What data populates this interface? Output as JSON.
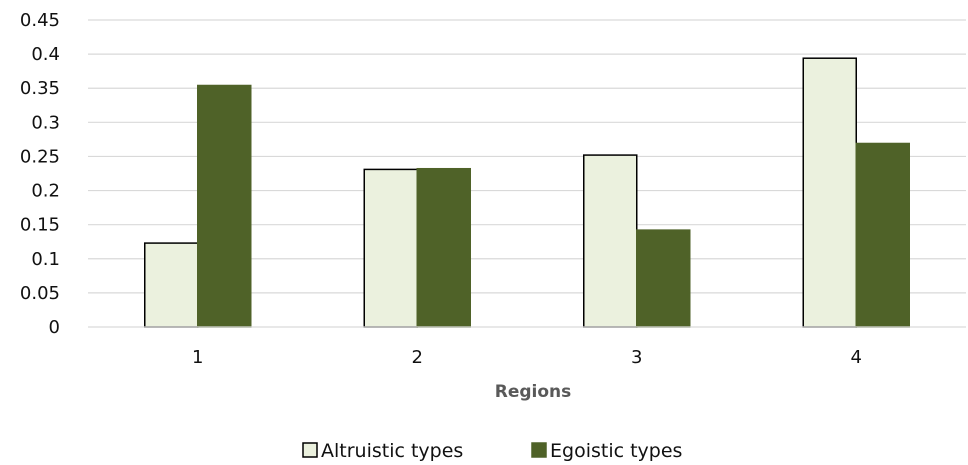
{
  "chart_data": {
    "type": "bar",
    "title": "",
    "xlabel": "Regions",
    "ylabel": "",
    "categories": [
      "1",
      "2",
      "3",
      "4"
    ],
    "series": [
      {
        "name": "Altruistic types",
        "values": [
          0.123,
          0.231,
          0.252,
          0.394
        ],
        "color": "#ebf1de",
        "stroke": "#000000"
      },
      {
        "name": "Egoistic types",
        "values": [
          0.354,
          0.232,
          0.142,
          0.269
        ],
        "color": "#4f6228",
        "stroke": "#4f6228"
      }
    ],
    "ylim": [
      0,
      0.45
    ],
    "yticks": [
      "0",
      "0.05",
      "0.1",
      "0.15",
      "0.2",
      "0.25",
      "0.3",
      "0.35",
      "0.4",
      "0.45"
    ],
    "grid": true,
    "legend_position": "bottom",
    "gridline_color": "#d9d9d9"
  }
}
